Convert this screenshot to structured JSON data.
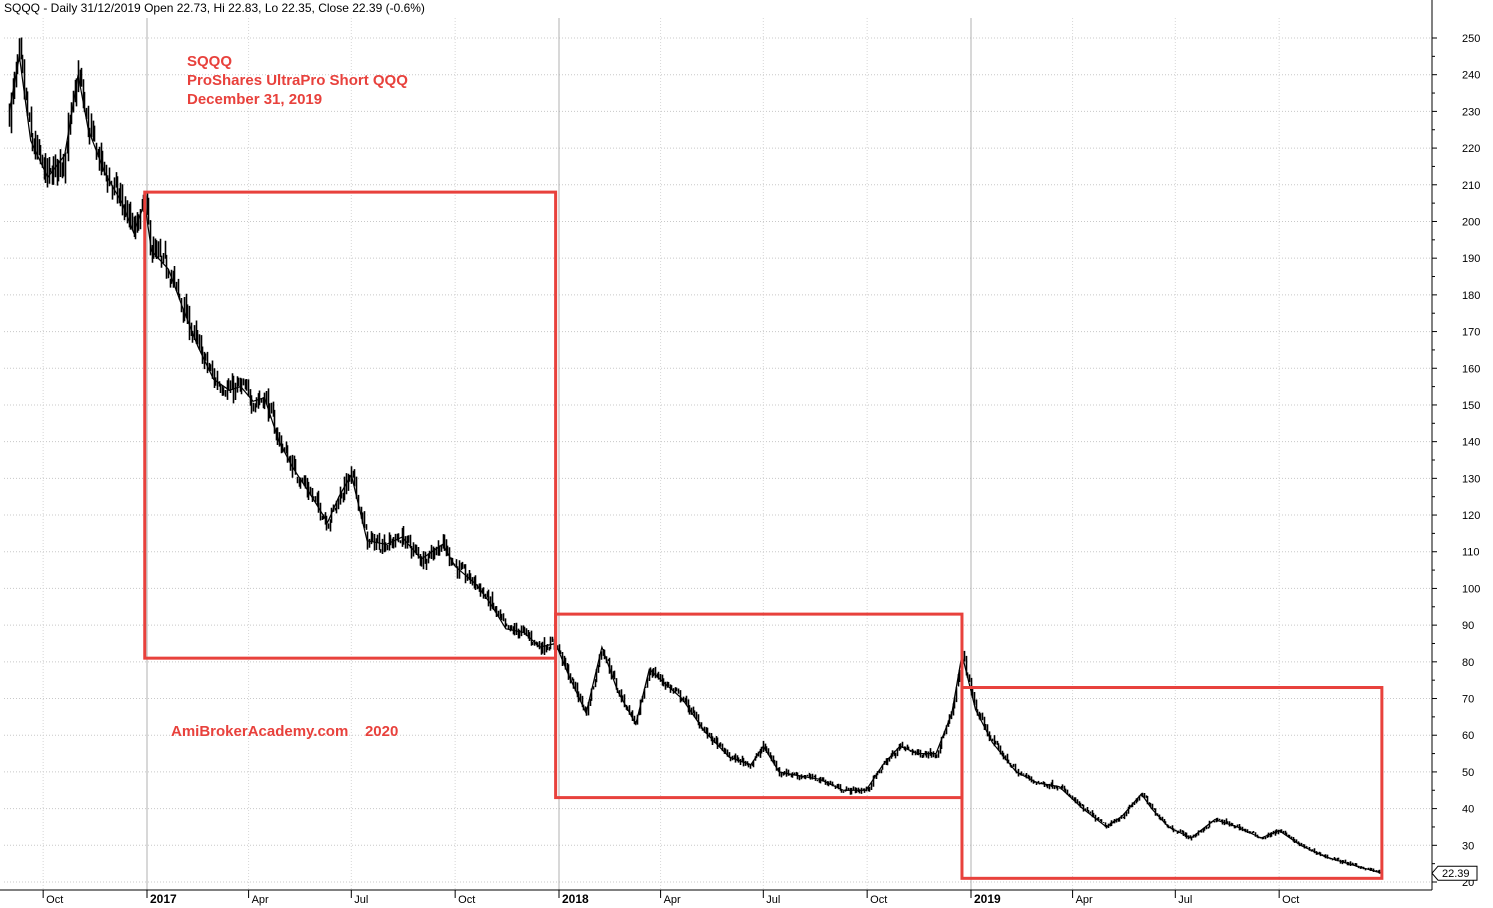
{
  "header": {
    "text": "SQQQ - Daily 31/12/2019 Open 22.73, Hi 22.83, Lo 22.35, Close 22.39 (-0.6%)"
  },
  "annotations": {
    "title_line1": "SQQQ",
    "title_line2": "ProShares UltraPro Short QQQ",
    "title_line3": "December 31, 2019",
    "watermark": "AmiBrokerAcademy.com    2020",
    "color": "#e8413c"
  },
  "last_price_label": "22.39",
  "chart_data": {
    "type": "line",
    "style": "candlestick-like daily bars, black",
    "ylim": [
      20,
      255
    ],
    "y_ticks": [
      20,
      30,
      40,
      50,
      60,
      70,
      80,
      90,
      100,
      110,
      120,
      130,
      140,
      150,
      160,
      170,
      180,
      190,
      200,
      210,
      220,
      230,
      240,
      250
    ],
    "y_tick_labels": [
      "20",
      "30",
      "40",
      "50",
      "60",
      "70",
      "80",
      "90",
      "100",
      "110",
      "120",
      "130",
      "140",
      "150",
      "160",
      "170",
      "180",
      "190",
      "200",
      "210",
      "220",
      "230",
      "240",
      "250"
    ],
    "x_tick_labels": [
      {
        "label": "Oct",
        "bold": false,
        "date": "2016-10-01"
      },
      {
        "label": "2017",
        "bold": true,
        "date": "2017-01-01"
      },
      {
        "label": "Apr",
        "bold": false,
        "date": "2017-04-01"
      },
      {
        "label": "Jul",
        "bold": false,
        "date": "2017-07-01"
      },
      {
        "label": "Oct",
        "bold": false,
        "date": "2017-10-01"
      },
      {
        "label": "2018",
        "bold": true,
        "date": "2018-01-01"
      },
      {
        "label": "Apr",
        "bold": false,
        "date": "2018-04-01"
      },
      {
        "label": "Jul",
        "bold": false,
        "date": "2018-07-01"
      },
      {
        "label": "Oct",
        "bold": false,
        "date": "2018-10-01"
      },
      {
        "label": "2019",
        "bold": true,
        "date": "2019-01-01"
      },
      {
        "label": "Apr",
        "bold": false,
        "date": "2019-04-01"
      },
      {
        "label": "Jul",
        "bold": false,
        "date": "2019-07-01"
      },
      {
        "label": "Oct",
        "bold": false,
        "date": "2019-10-01"
      }
    ],
    "x_range": [
      "2016-08-29",
      "2020-02-10"
    ],
    "grid": true,
    "series": [
      {
        "values": [
          [
            "2016-09-01",
            230
          ],
          [
            "2016-09-10",
            245
          ],
          [
            "2016-09-20",
            222
          ],
          [
            "2016-10-05",
            212
          ],
          [
            "2016-10-20",
            218
          ],
          [
            "2016-11-01",
            240
          ],
          [
            "2016-11-10",
            225
          ],
          [
            "2016-11-25",
            213
          ],
          [
            "2016-12-10",
            205
          ],
          [
            "2016-12-20",
            197
          ],
          [
            "2016-12-30",
            205
          ],
          [
            "2017-01-05",
            192
          ],
          [
            "2017-01-20",
            187
          ],
          [
            "2017-02-01",
            177
          ],
          [
            "2017-02-15",
            166
          ],
          [
            "2017-03-01",
            157
          ],
          [
            "2017-03-15",
            154
          ],
          [
            "2017-03-25",
            155
          ],
          [
            "2017-04-05",
            151
          ],
          [
            "2017-04-15",
            152
          ],
          [
            "2017-04-28",
            140
          ],
          [
            "2017-05-10",
            133
          ],
          [
            "2017-05-25",
            126
          ],
          [
            "2017-06-10",
            118
          ],
          [
            "2017-06-20",
            125
          ],
          [
            "2017-07-01",
            131
          ],
          [
            "2017-07-15",
            113
          ],
          [
            "2017-08-01",
            112
          ],
          [
            "2017-08-15",
            114
          ],
          [
            "2017-09-01",
            108
          ],
          [
            "2017-09-20",
            112
          ],
          [
            "2017-10-01",
            106
          ],
          [
            "2017-10-20",
            101
          ],
          [
            "2017-11-01",
            96
          ],
          [
            "2017-11-15",
            89
          ],
          [
            "2017-12-01",
            88
          ],
          [
            "2017-12-15",
            84
          ],
          [
            "2017-12-29",
            85
          ],
          [
            "2018-01-10",
            76
          ],
          [
            "2018-01-25",
            66
          ],
          [
            "2018-02-08",
            84
          ],
          [
            "2018-02-22",
            72
          ],
          [
            "2018-03-10",
            63
          ],
          [
            "2018-03-22",
            78
          ],
          [
            "2018-04-05",
            74
          ],
          [
            "2018-04-20",
            70
          ],
          [
            "2018-05-10",
            61
          ],
          [
            "2018-06-01",
            54
          ],
          [
            "2018-06-20",
            52
          ],
          [
            "2018-07-01",
            57
          ],
          [
            "2018-07-15",
            50
          ],
          [
            "2018-08-01",
            49
          ],
          [
            "2018-08-20",
            48
          ],
          [
            "2018-09-10",
            45
          ],
          [
            "2018-09-30",
            45
          ],
          [
            "2018-10-15",
            52
          ],
          [
            "2018-10-30",
            57
          ],
          [
            "2018-11-15",
            55
          ],
          [
            "2018-12-01",
            55
          ],
          [
            "2018-12-15",
            66
          ],
          [
            "2018-12-24",
            82
          ],
          [
            "2019-01-05",
            67
          ],
          [
            "2019-01-20",
            58
          ],
          [
            "2019-02-10",
            50
          ],
          [
            "2019-03-01",
            47
          ],
          [
            "2019-03-20",
            46
          ],
          [
            "2019-04-10",
            40
          ],
          [
            "2019-05-01",
            35
          ],
          [
            "2019-05-15",
            38
          ],
          [
            "2019-06-01",
            44
          ],
          [
            "2019-06-10",
            40
          ],
          [
            "2019-06-25",
            35
          ],
          [
            "2019-07-15",
            32
          ],
          [
            "2019-08-05",
            37
          ],
          [
            "2019-08-25",
            35
          ],
          [
            "2019-09-15",
            32
          ],
          [
            "2019-10-01",
            34
          ],
          [
            "2019-10-20",
            30
          ],
          [
            "2019-11-10",
            27
          ],
          [
            "2019-12-01",
            25
          ],
          [
            "2019-12-31",
            22.39
          ]
        ]
      }
    ],
    "boxes": [
      {
        "start": "2016-12-30",
        "end": "2017-12-29",
        "low": 81,
        "high": 208
      },
      {
        "start": "2017-12-29",
        "end": "2018-12-24",
        "low": 43,
        "high": 93
      },
      {
        "start": "2018-12-24",
        "end": "2019-12-31",
        "low": 21,
        "high": 73
      }
    ]
  }
}
